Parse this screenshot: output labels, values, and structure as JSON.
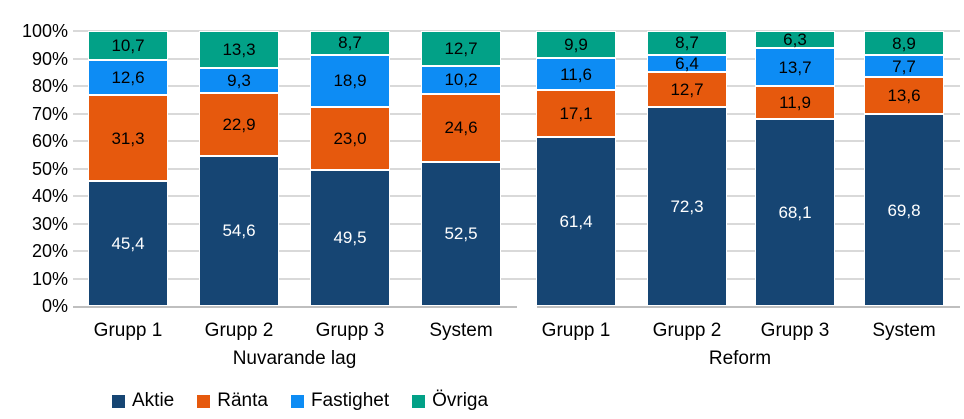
{
  "colors": {
    "background": "#FFFFFF",
    "gridline": "#D9D9D9",
    "axis": "#BFBFBF",
    "text": "#000000"
  },
  "chart_data": {
    "type": "bar",
    "variant": "stacked-100-percent",
    "title": "",
    "xlabel": "",
    "ylabel": "",
    "ylim": [
      0,
      100
    ],
    "grid": true,
    "y_ticks": [
      "0%",
      "10%",
      "20%",
      "30%",
      "40%",
      "50%",
      "60%",
      "70%",
      "80%",
      "90%",
      "100%"
    ],
    "groups": [
      {
        "label": "Nuvarande lag",
        "categories": [
          "Grupp 1",
          "Grupp 2",
          "Grupp 3",
          "System"
        ]
      },
      {
        "label": "Reform",
        "categories": [
          "Grupp 1",
          "Grupp 2",
          "Grupp 3",
          "System"
        ]
      }
    ],
    "categories": [
      "Grupp 1",
      "Grupp 2",
      "Grupp 3",
      "System",
      "Grupp 1",
      "Grupp 2",
      "Grupp 3",
      "System"
    ],
    "series": [
      {
        "name": "Aktie",
        "color": "#164573",
        "label_color": "#FFFFFF",
        "values": [
          45.4,
          54.6,
          49.5,
          52.5,
          61.4,
          72.3,
          68.1,
          69.8
        ],
        "labels": [
          "45,4",
          "54,6",
          "49,5",
          "52,5",
          "61,4",
          "72,3",
          "68,1",
          "69,8"
        ]
      },
      {
        "name": "Ränta",
        "color": "#E6590D",
        "label_color": "#000000",
        "values": [
          31.3,
          22.9,
          23.0,
          24.6,
          17.1,
          12.7,
          11.9,
          13.6
        ],
        "labels": [
          "31,3",
          "22,9",
          "23,0",
          "24,6",
          "17,1",
          "12,7",
          "11,9",
          "13,6"
        ]
      },
      {
        "name": "Fastighet",
        "color": "#0D8CF4",
        "label_color": "#000000",
        "values": [
          12.6,
          9.3,
          18.9,
          10.2,
          11.6,
          6.4,
          13.7,
          7.7
        ],
        "labels": [
          "12,6",
          "9,3",
          "18,9",
          "10,2",
          "11,6",
          "6,4",
          "13,7",
          "7,7"
        ]
      },
      {
        "name": "Övriga",
        "color": "#02A187",
        "label_color": "#000000",
        "values": [
          10.7,
          13.3,
          8.7,
          12.7,
          9.9,
          8.7,
          6.3,
          8.9
        ],
        "labels": [
          "10,7",
          "13,3",
          "8,7",
          "12,7",
          "9,9",
          "8,7",
          "6,3",
          "8,9"
        ]
      }
    ],
    "legend": {
      "position": "bottom",
      "entries": [
        "Aktie",
        "Ränta",
        "Fastighet",
        "Övriga"
      ]
    }
  }
}
